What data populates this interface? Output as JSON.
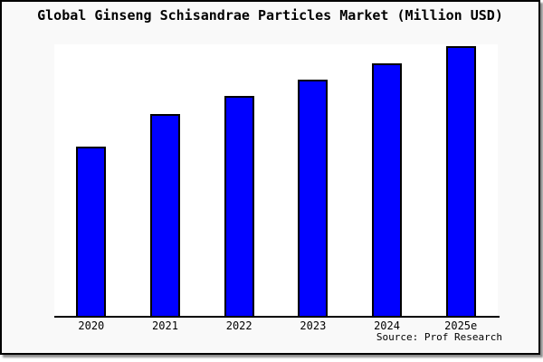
{
  "window": {
    "background_color": "#f9f9f9",
    "plot_background_color": "#ffffff",
    "border_color": "#000000"
  },
  "chart_data": {
    "type": "bar",
    "title": "Global Ginseng Schisandrae Particles Market (Million USD)",
    "categories": [
      "2020",
      "2021",
      "2022",
      "2023",
      "2024",
      "2025e"
    ],
    "values": [
      62.5,
      74.8,
      81.3,
      87.6,
      93.6,
      100
    ],
    "xlabel": "",
    "ylabel": "",
    "ylim": [
      0,
      100.5
    ],
    "y_axis_labeled": false,
    "grid": false,
    "legend": false,
    "bar_color": "#0000ff",
    "bar_border_color": "#000000",
    "source": "Source: Prof Research"
  }
}
